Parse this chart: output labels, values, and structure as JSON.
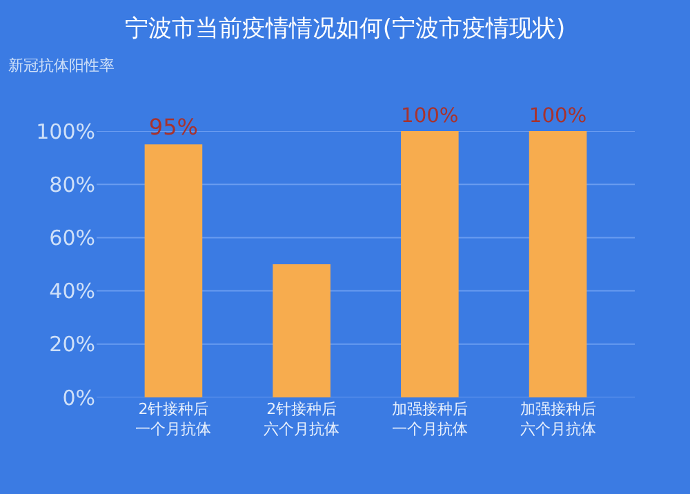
{
  "chart_data": {
    "type": "bar",
    "title": "宁波市当前疫情情况如何(宁波市疫情现状)",
    "ylabel": "新冠抗体阳性率",
    "categories": [
      "2针接种后一个月抗体",
      "2针接种后六个月抗体",
      "加强接种后一个月抗体",
      "加强接种后六个月抗体"
    ],
    "values": [
      95,
      50,
      100,
      100
    ],
    "color": "#f7ac4e",
    "value_labels": [
      "95%",
      null,
      "100%",
      "100%"
    ],
    "ylim": [
      0,
      100
    ],
    "yticks": [
      {
        "value": 0,
        "label": "0%"
      },
      {
        "value": 20,
        "label": "20%"
      },
      {
        "value": 40,
        "label": "40%"
      },
      {
        "value": 60,
        "label": "60%"
      },
      {
        "value": 80,
        "label": "80%"
      },
      {
        "value": 100,
        "label": "100%"
      }
    ],
    "grid": "y"
  }
}
